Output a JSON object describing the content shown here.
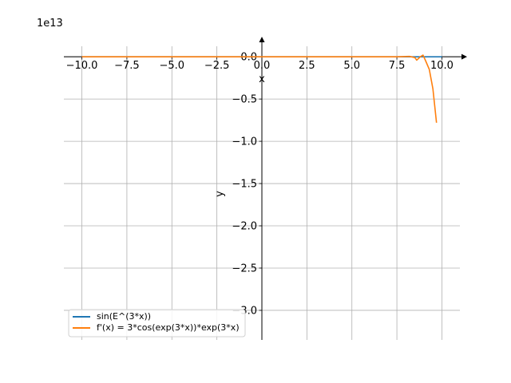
{
  "chart_data": {
    "type": "line",
    "title": "",
    "xlabel": "x",
    "ylabel": "y",
    "offset_label": "1e13",
    "xlim": [
      -11,
      11
    ],
    "ylim": [
      -3.35,
      0.2
    ],
    "x_ticks": [
      -10.0,
      -7.5,
      -5.0,
      -2.5,
      0.0,
      2.5,
      5.0,
      7.5,
      10.0
    ],
    "x_tick_labels": [
      "−10.0",
      "−7.5",
      "−5.0",
      "−2.5",
      "0.0",
      "2.5",
      "5.0",
      "7.5",
      "10.0"
    ],
    "y_ticks": [
      0.0,
      -0.5,
      -1.0,
      -1.5,
      -2.0,
      -2.5,
      -3.0
    ],
    "y_tick_labels": [
      "0.0",
      "−0.5",
      "−1.0",
      "−1.5",
      "−2.0",
      "−2.5",
      "−3.0"
    ],
    "grid": true,
    "legend_position": "lower-left",
    "series": [
      {
        "name": "sin(E^(3*x))",
        "color": "#1f77b4",
        "x": [
          -10,
          -7.5,
          -5,
          -2.5,
          0,
          2.5,
          5,
          7.5,
          10
        ],
        "y": [
          0,
          0,
          0,
          0,
          0,
          0,
          0,
          0,
          0
        ]
      },
      {
        "name": "f'(x) = 3*cos(exp(3*x))*exp(3*x)",
        "color": "#ff7f0e",
        "x": [
          -10,
          -5,
          0,
          5,
          7.5,
          8.2,
          8.5,
          8.6,
          8.8,
          8.95,
          9.1,
          9.3,
          9.5,
          9.7
        ],
        "y": [
          0,
          0,
          0,
          0,
          0,
          0.005,
          -0.01,
          -0.04,
          0.0,
          0.02,
          -0.05,
          -0.15,
          -0.38,
          -0.78
        ]
      }
    ]
  }
}
